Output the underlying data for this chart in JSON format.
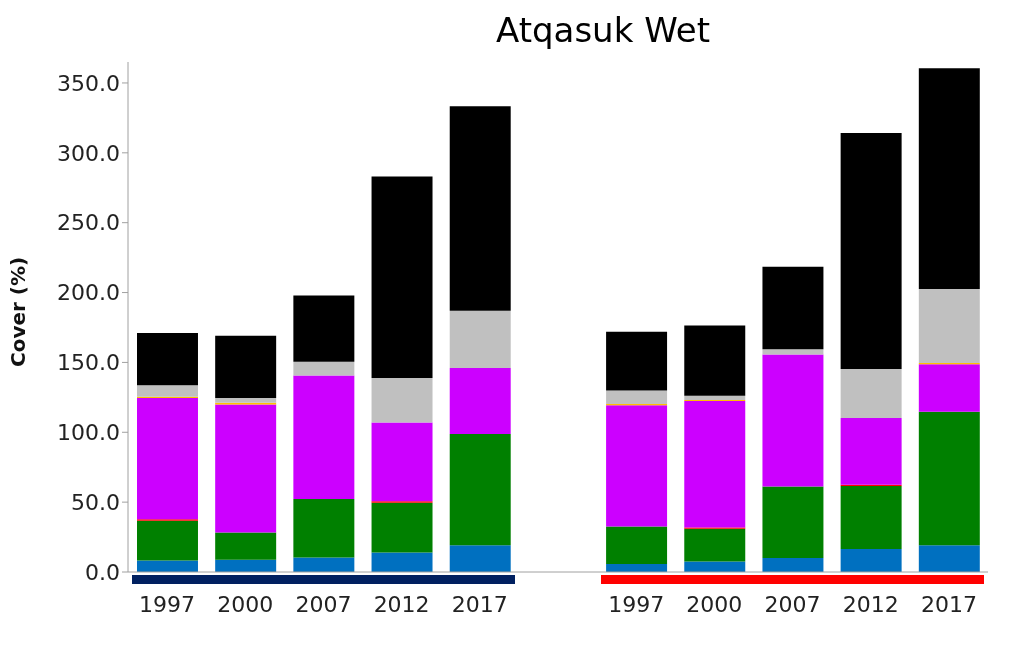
{
  "chart_data": {
    "type": "bar",
    "title": "Atqasuk Wet",
    "ylabel": "Cover (%)",
    "stacked": true,
    "categories": [
      "1997",
      "2000",
      "2007",
      "2012",
      "2017",
      null,
      "1997",
      "2000",
      "2007",
      "2012",
      "2017"
    ],
    "ylim": [
      0,
      365
    ],
    "yticks": [
      {
        "value": 0,
        "label": "0.0"
      },
      {
        "value": 50,
        "label": "50.0"
      },
      {
        "value": 100,
        "label": "100.0"
      },
      {
        "value": 150,
        "label": "150.0"
      },
      {
        "value": 200,
        "label": "200.0"
      },
      {
        "value": 250,
        "label": "250.0"
      },
      {
        "value": 300,
        "label": "300.0"
      },
      {
        "value": 350,
        "label": "350.0"
      }
    ],
    "series": [
      {
        "color": "#0070c0",
        "values": [
          8.3,
          8.7,
          10.3,
          14,
          19.2,
          null,
          5.8,
          7.6,
          10.1,
          16.5,
          19.2
        ]
      },
      {
        "color": "#008000",
        "values": [
          28.4,
          19.6,
          42,
          35.6,
          79.5,
          null,
          26.8,
          23.4,
          51.1,
          45,
          95.4
        ]
      },
      {
        "color": "#ff0000",
        "values": [
          1,
          0,
          0,
          1,
          0,
          null,
          0,
          0.8,
          0,
          0.9,
          0
        ]
      },
      {
        "color": "#cc00ff",
        "values": [
          86.9,
          91.5,
          88.3,
          56.4,
          47.3,
          null,
          86.8,
          90.5,
          94.5,
          47.9,
          34.1
        ]
      },
      {
        "color": "#ffc000",
        "values": [
          0.8,
          1.4,
          0,
          0,
          0,
          null,
          0.8,
          0.8,
          0,
          0,
          0.8
        ]
      },
      {
        "color": "#c0c0c0",
        "values": [
          8.3,
          3.3,
          9.8,
          31.8,
          41,
          null,
          9.7,
          3.1,
          3.7,
          34.9,
          53.1
        ]
      },
      {
        "color": "#000000",
        "values": [
          37.4,
          44.5,
          47.4,
          144.3,
          146.3,
          null,
          42.1,
          50.2,
          59.1,
          168.9,
          158
        ]
      }
    ]
  }
}
